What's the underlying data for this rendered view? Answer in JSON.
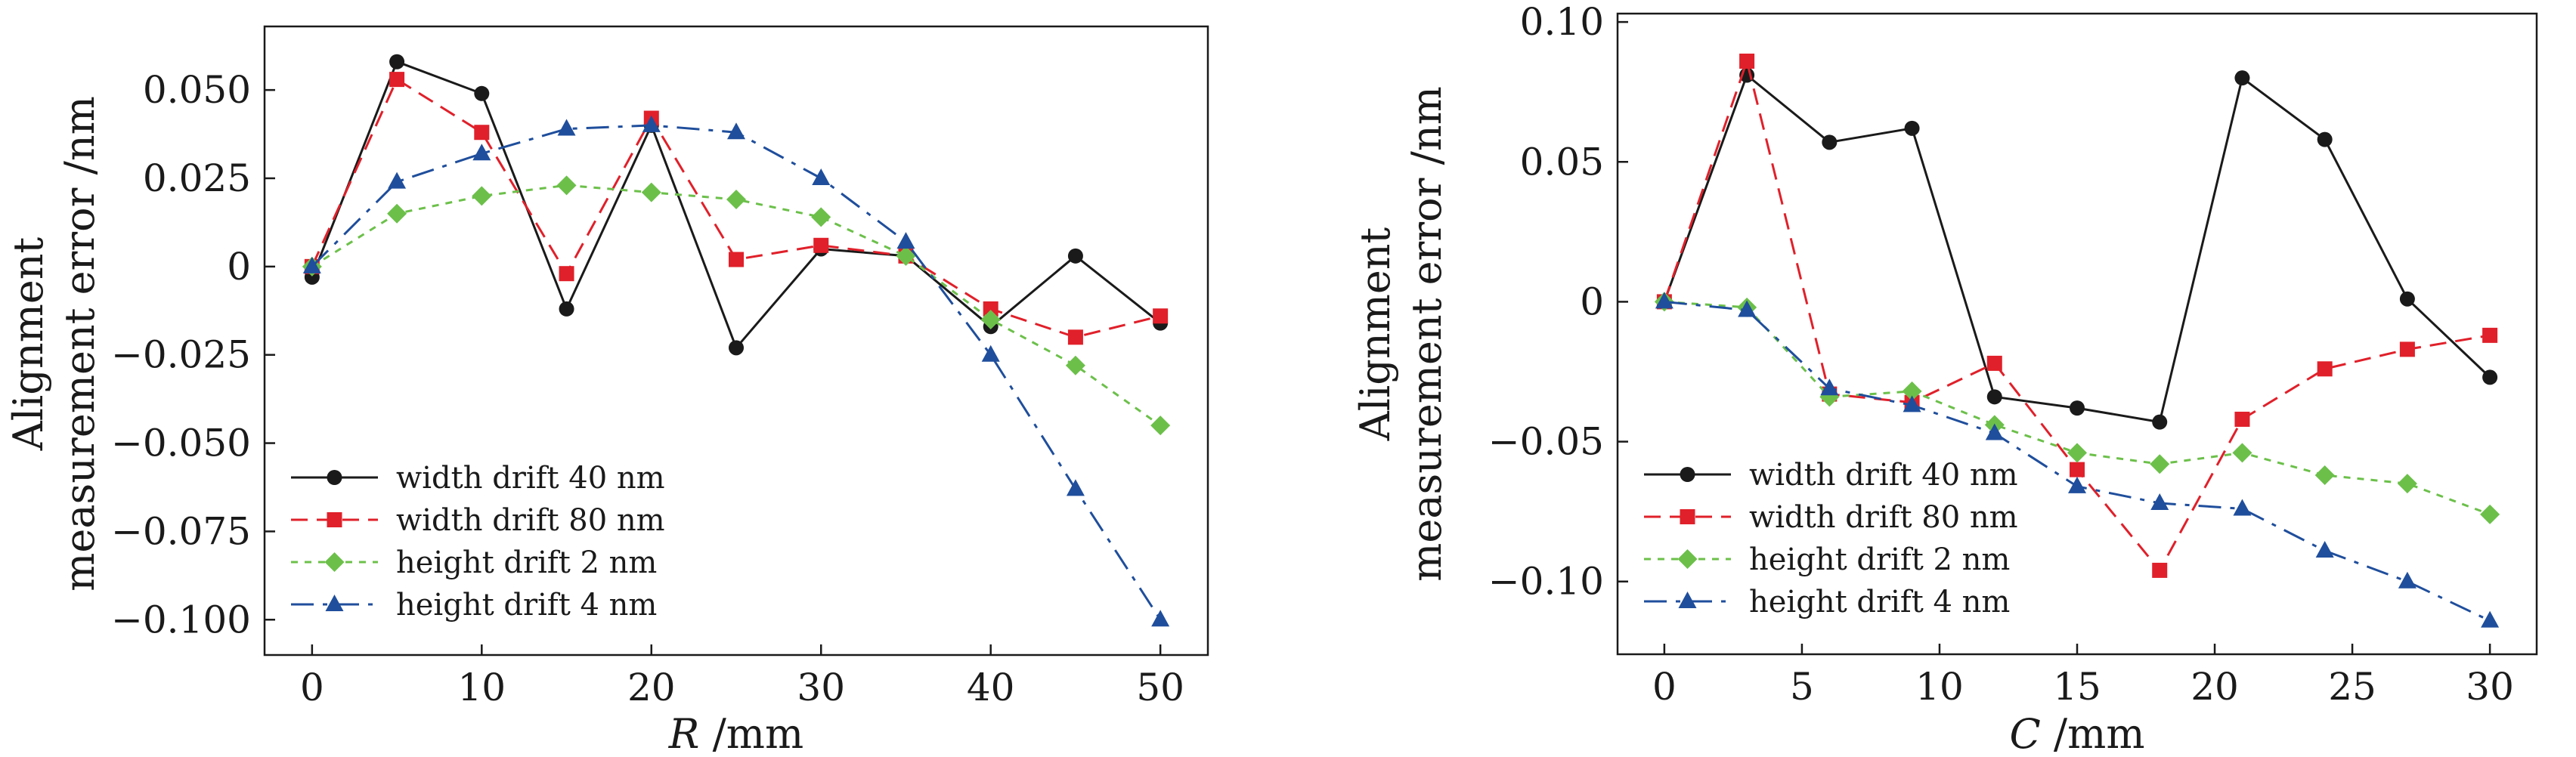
{
  "chart_data": [
    {
      "type": "line",
      "xlabel": "R /mm",
      "ylabel": [
        "Alignment",
        "measurement error /nm"
      ],
      "xlim": [
        -2.8,
        52.8
      ],
      "ylim": [
        -0.11,
        0.068
      ],
      "xticks": [
        0,
        10,
        20,
        30,
        40,
        50
      ],
      "xtick_labels": [
        "0",
        "10",
        "20",
        "30",
        "40",
        "50"
      ],
      "yticks": [
        0.05,
        0.025,
        0,
        -0.025,
        -0.05,
        -0.075,
        -0.1
      ],
      "ytick_labels": [
        "0.050",
        "0.025",
        "0",
        "−0.025",
        "−0.050",
        "−0.075",
        "−0.100"
      ],
      "legend_position": "lower-left",
      "x": [
        0,
        5,
        10,
        15,
        20,
        25,
        30,
        35,
        40,
        45,
        50
      ],
      "series": [
        {
          "name": "width drift 40 nm",
          "color": "#1a1a1a",
          "marker": "circle",
          "dash": "solid",
          "values": [
            -0.003,
            0.058,
            0.049,
            -0.012,
            0.04,
            -0.023,
            0.005,
            0.003,
            -0.017,
            0.003,
            -0.016
          ]
        },
        {
          "name": "width drift 80 nm",
          "color": "#e0202a",
          "marker": "square",
          "dash": "dashed",
          "values": [
            0.0,
            0.053,
            0.038,
            -0.002,
            0.042,
            0.002,
            0.006,
            0.003,
            -0.012,
            -0.02,
            -0.014
          ]
        },
        {
          "name": "height drift 2 nm",
          "color": "#6cc04a",
          "marker": "diamond",
          "dash": "dotted",
          "values": [
            0.0,
            0.015,
            0.02,
            0.023,
            0.021,
            0.019,
            0.014,
            0.003,
            -0.015,
            -0.028,
            -0.045
          ]
        },
        {
          "name": "height drift 4 nm",
          "color": "#1f4e9c",
          "marker": "triangle",
          "dash": "dashdot",
          "values": [
            0.0,
            0.024,
            0.032,
            0.039,
            0.04,
            0.038,
            0.025,
            0.007,
            -0.025,
            -0.063,
            -0.1
          ]
        }
      ]
    },
    {
      "type": "line",
      "xlabel": "C /mm",
      "ylabel": [
        "Alignment",
        "measurement error /nm"
      ],
      "xlim": [
        -1.7,
        31.7
      ],
      "ylim": [
        -0.126,
        0.103
      ],
      "xticks": [
        0,
        5,
        10,
        15,
        20,
        25,
        30
      ],
      "xtick_labels": [
        "0",
        "5",
        "10",
        "15",
        "20",
        "25",
        "30"
      ],
      "yticks": [
        0.1,
        0.05,
        0,
        -0.05,
        -0.1
      ],
      "ytick_labels": [
        "0.10",
        "0.05",
        "0",
        "−0.05",
        "−0.10"
      ],
      "legend_position": "lower-left",
      "x": [
        0,
        3,
        6,
        9,
        12,
        15,
        18,
        21,
        24,
        27,
        30
      ],
      "series": [
        {
          "name": "width drift 40 nm",
          "color": "#1a1a1a",
          "marker": "circle",
          "dash": "solid",
          "values": [
            0.0,
            0.081,
            0.057,
            0.062,
            -0.034,
            -0.038,
            -0.043,
            0.08,
            0.058,
            0.001,
            -0.027
          ]
        },
        {
          "name": "width drift 80 nm",
          "color": "#e0202a",
          "marker": "square",
          "dash": "dashed",
          "values": [
            0.0,
            0.086,
            -0.033,
            -0.036,
            -0.022,
            -0.06,
            -0.096,
            -0.042,
            -0.024,
            -0.017,
            -0.012
          ]
        },
        {
          "name": "height drift 2 nm",
          "color": "#6cc04a",
          "marker": "diamond",
          "dash": "dotted",
          "values": [
            0.0,
            -0.002,
            -0.034,
            -0.032,
            -0.044,
            -0.054,
            -0.058,
            -0.054,
            -0.062,
            -0.065,
            -0.076
          ]
        },
        {
          "name": "height drift 4 nm",
          "color": "#1f4e9c",
          "marker": "triangle",
          "dash": "dashdot",
          "values": [
            0.0,
            -0.003,
            -0.031,
            -0.037,
            -0.047,
            -0.066,
            -0.072,
            -0.074,
            -0.089,
            -0.1,
            -0.114
          ]
        }
      ]
    }
  ]
}
